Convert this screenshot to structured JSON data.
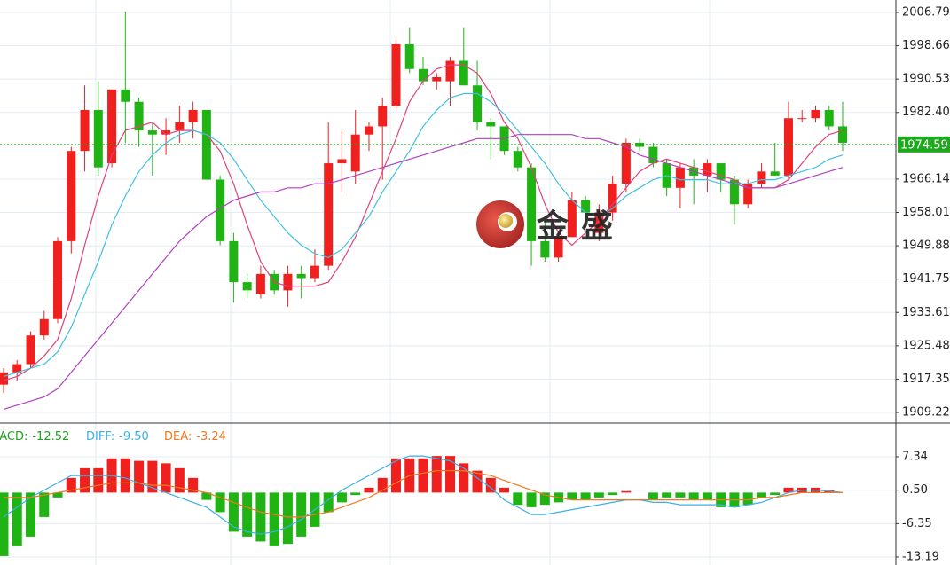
{
  "watermark": "金盛",
  "chart_data": [
    {
      "type": "candlestick",
      "ylim": [
        1907.06,
        2009.82
      ],
      "yticks": [
        2006.79,
        1998.66,
        1990.53,
        {
          "value": 1982.4,
          "label": "1982.40"
        },
        1966.14,
        1958.01,
        1949.88,
        1941.75,
        1933.61,
        1925.48,
        1917.35,
        1909.22
      ],
      "grid": true,
      "up_color": "#f0201e",
      "down_color": "#1fb414",
      "open": [
        1916,
        1919,
        1921,
        1928,
        1932,
        1951,
        1973,
        1983,
        1970,
        1988,
        1985,
        1978,
        1977,
        1978,
        1980,
        1983,
        1966,
        1951,
        1941,
        1938,
        1943,
        1939,
        1943,
        1942,
        1945,
        1970,
        1968,
        1977,
        1979,
        1984,
        1999,
        1993,
        1990,
        1990,
        1995,
        1989,
        1980,
        1979,
        1973,
        1969,
        1951,
        1947,
        1952,
        1961,
        1953,
        1958,
        1965,
        1975,
        1974,
        1970,
        1964,
        1969,
        1967,
        1970,
        1966,
        1960,
        1965,
        1968,
        1967,
        1981,
        1981,
        1983,
        1979
      ],
      "high": [
        1920,
        1922,
        1929,
        1934,
        1952,
        1974,
        1989,
        1990,
        1988,
        2007,
        1986,
        1980,
        1981,
        1984,
        1985,
        1983,
        1967,
        1953,
        1943,
        1945,
        1944,
        1945,
        1945,
        1949,
        1980,
        1978,
        1983,
        1980,
        1986,
        2000,
        2003,
        1996,
        1992,
        1996,
        2003,
        1995,
        1981,
        1979,
        1974,
        1970,
        1956,
        1953,
        1963,
        1962,
        1960,
        1967,
        1976,
        1976,
        1975,
        1971,
        1970,
        1971,
        1971,
        1970,
        1967,
        1966,
        1970,
        1975,
        1985,
        1983,
        1984,
        1984,
        1985
      ],
      "low": [
        1914,
        1917,
        1920,
        1927,
        1931,
        1948,
        1968,
        1967,
        1969,
        1975,
        1974,
        1967,
        1972,
        1975,
        1976,
        1966,
        1950,
        1936,
        1937,
        1937,
        1938,
        1935,
        1937,
        1941,
        1944,
        1963,
        1965,
        1973,
        1966,
        1983,
        1992,
        1989,
        1988,
        1984,
        1989,
        1978,
        1971,
        1972,
        1968,
        1945,
        1946,
        1946,
        1952,
        1957,
        1951,
        1956,
        1963,
        1973,
        1969,
        1962,
        1959,
        1960,
        1963,
        1963,
        1955,
        1959,
        1964,
        1967,
        1966,
        1980,
        1980,
        1978,
        1973
      ],
      "close": [
        1919,
        1921,
        1928,
        1932,
        1951,
        1973,
        1983,
        1969,
        1988,
        1985,
        1978,
        1977,
        1978,
        1980,
        1983,
        1966,
        1951,
        1941,
        1939,
        1943,
        1939,
        1943,
        1942,
        1945,
        1970,
        1971,
        1977,
        1979,
        1984,
        1999,
        1993,
        1990,
        1991,
        1995,
        1989,
        1980,
        1979,
        1973,
        1969,
        1951,
        1947,
        1952,
        1961,
        1958,
        1958,
        1965,
        1975,
        1974,
        1970,
        1964,
        1969,
        1967,
        1970,
        1966,
        1960,
        1965,
        1968,
        1967,
        1981,
        1981,
        1983,
        1979,
        1975
      ],
      "lines": [
        {
          "color": "#e0407a",
          "values": [
            1917,
            1918,
            1920,
            1923,
            1927,
            1937,
            1950,
            1962,
            1972,
            1978,
            1979,
            1980,
            1977,
            1978,
            1978,
            1977,
            1973,
            1965,
            1955,
            1946,
            1941,
            1940,
            1940,
            1940,
            1941,
            1946,
            1952,
            1960,
            1968,
            1976,
            1985,
            1990,
            1993,
            1994,
            1994,
            1992,
            1987,
            1980,
            1976,
            1969,
            1960,
            1953,
            1950,
            1953,
            1956,
            1960,
            1964,
            1968,
            1970,
            1971,
            1970,
            1969,
            1968,
            1967,
            1966,
            1964,
            1964,
            1964,
            1966,
            1970,
            1974,
            1977,
            1978
          ]
        },
        {
          "color": "#40c0e0",
          "values": [
            1918,
            1919,
            1920,
            1921,
            1924,
            1930,
            1938,
            1946,
            1955,
            1962,
            1968,
            1972,
            1975,
            1977,
            1978,
            1977,
            1975,
            1971,
            1966,
            1961,
            1957,
            1953,
            1950,
            1948,
            1947,
            1949,
            1953,
            1957,
            1963,
            1968,
            1973,
            1979,
            1983,
            1986,
            1987,
            1987,
            1985,
            1982,
            1978,
            1974,
            1970,
            1965,
            1961,
            1958,
            1957,
            1959,
            1962,
            1964,
            1966,
            1967,
            1966,
            1966,
            1966,
            1965,
            1965,
            1965,
            1966,
            1966,
            1967,
            1968,
            1969,
            1971,
            1972
          ]
        },
        {
          "color": "#b040c0",
          "values": [
            1910,
            1911,
            1912,
            1913,
            1915,
            1919,
            1923,
            1927,
            1931,
            1935,
            1939,
            1943,
            1947,
            1951,
            1954,
            1957,
            1959,
            1961,
            1962,
            1963,
            1963,
            1964,
            1964,
            1965,
            1965,
            1966,
            1967,
            1968,
            1969,
            1970,
            1971,
            1972,
            1973,
            1974,
            1975,
            1976,
            1976,
            1976,
            1977,
            1977,
            1977,
            1977,
            1977,
            1976,
            1976,
            1975,
            1974,
            1972,
            1971,
            1970,
            1969,
            1968,
            1967,
            1966,
            1965,
            1964,
            1964,
            1964,
            1965,
            1966,
            1967,
            1968,
            1969
          ]
        }
      ],
      "last_price": 1974.59,
      "last_price_color": "#1ea81e"
    },
    {
      "type": "macd",
      "ylim": [
        -14.83,
        14.06
      ],
      "yticks": [
        7.34,
        {
          "value": 0.5,
          "label": "0.50"
        },
        -6.35,
        -13.19
      ],
      "grid": true,
      "series": [
        {
          "name": "MACD:",
          "legend_color": "#1fa01f",
          "up_color": "#f0201e",
          "down_color": "#1fb414",
          "current": -12.52,
          "values": [
            -13,
            -11,
            -9,
            -5,
            -1,
            3,
            5,
            5,
            7,
            7,
            6.5,
            6.5,
            6,
            5,
            3,
            -1.5,
            -4,
            -8,
            -9,
            -10,
            -11,
            -10.5,
            -9,
            -7,
            -4,
            -2,
            -0.5,
            1,
            3,
            7,
            7,
            7,
            7.5,
            7.5,
            6,
            4.5,
            3,
            1,
            -2.5,
            -3,
            -2.5,
            -2,
            -1.5,
            -1.5,
            -1,
            -0.5,
            0.3,
            0,
            -1.5,
            -1,
            -1,
            -1.5,
            -1.5,
            -3,
            -3,
            -2.5,
            -1,
            -0.5,
            1,
            1,
            1,
            0.5,
            0
          ]
        },
        {
          "name": "DIFF:",
          "color": "#3ab0e8",
          "current": -9.5,
          "current_label": "-9.50",
          "values": [
            -5,
            -3,
            -1,
            0.5,
            2,
            3.5,
            3.5,
            3.5,
            3.5,
            3,
            2,
            1,
            0,
            -1,
            -2,
            -3,
            -5,
            -7,
            -8,
            -8.5,
            -8,
            -7,
            -5.5,
            -3.5,
            -1.5,
            0.5,
            2,
            3.5,
            5,
            6.5,
            7.5,
            7.5,
            7,
            6.5,
            5,
            3,
            1,
            -1.5,
            -3,
            -4.5,
            -4.5,
            -4,
            -3.5,
            -3,
            -2.5,
            -2,
            -1.5,
            -1.5,
            -2,
            -2,
            -2.5,
            -2.5,
            -2.5,
            -2.5,
            -3,
            -2.5,
            -2,
            -1,
            0,
            0.5,
            0.5,
            0.3,
            0
          ]
        },
        {
          "name": "DEA:",
          "color": "#f07820",
          "current": -3.24,
          "values": [
            -1,
            -1,
            -1,
            -0.5,
            0,
            0.5,
            1,
            1.5,
            2,
            2,
            2,
            1.5,
            1.5,
            1,
            0.5,
            0,
            -1,
            -2,
            -3,
            -4,
            -4.5,
            -5,
            -5,
            -4.5,
            -4,
            -3,
            -2,
            -1,
            0.5,
            2,
            3.5,
            4,
            4.5,
            4.5,
            4.5,
            4,
            3.5,
            2.5,
            1.5,
            0.5,
            -0.5,
            -1,
            -1.5,
            -1.5,
            -1.5,
            -1.5,
            -1.5,
            -1.5,
            -1.5,
            -1.5,
            -1.5,
            -1.5,
            -1.5,
            -1.5,
            -1.5,
            -1.5,
            -1,
            -1,
            -0.5,
            0,
            0,
            0,
            0
          ]
        }
      ]
    }
  ]
}
